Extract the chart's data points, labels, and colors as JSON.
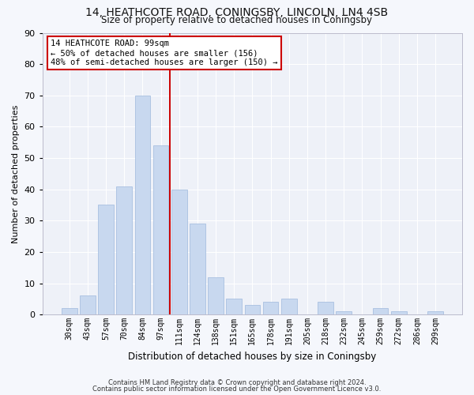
{
  "title": "14, HEATHCOTE ROAD, CONINGSBY, LINCOLN, LN4 4SB",
  "subtitle": "Size of property relative to detached houses in Coningsby",
  "xlabel": "Distribution of detached houses by size in Coningsby",
  "ylabel": "Number of detached properties",
  "bar_color": "#c8d8ef",
  "bar_edge_color": "#a8c0e0",
  "fig_bg_color": "#f5f7fc",
  "ax_bg_color": "#eef1f8",
  "grid_color": "#ffffff",
  "categories": [
    "30sqm",
    "43sqm",
    "57sqm",
    "70sqm",
    "84sqm",
    "97sqm",
    "111sqm",
    "124sqm",
    "138sqm",
    "151sqm",
    "165sqm",
    "178sqm",
    "191sqm",
    "205sqm",
    "218sqm",
    "232sqm",
    "245sqm",
    "259sqm",
    "272sqm",
    "286sqm",
    "299sqm"
  ],
  "values": [
    2,
    6,
    35,
    41,
    70,
    54,
    40,
    29,
    12,
    5,
    3,
    4,
    5,
    0,
    4,
    1,
    0,
    2,
    1,
    0,
    1
  ],
  "vline_x": 5.5,
  "vline_color": "#cc0000",
  "annotation_line1": "14 HEATHCOTE ROAD: 99sqm",
  "annotation_line2": "← 50% of detached houses are smaller (156)",
  "annotation_line3": "48% of semi-detached houses are larger (150) →",
  "annotation_box_facecolor": "#ffffff",
  "annotation_box_edgecolor": "#cc0000",
  "ylim": [
    0,
    90
  ],
  "yticks": [
    0,
    10,
    20,
    30,
    40,
    50,
    60,
    70,
    80,
    90
  ],
  "footer1": "Contains HM Land Registry data © Crown copyright and database right 2024.",
  "footer2": "Contains public sector information licensed under the Open Government Licence v3.0."
}
